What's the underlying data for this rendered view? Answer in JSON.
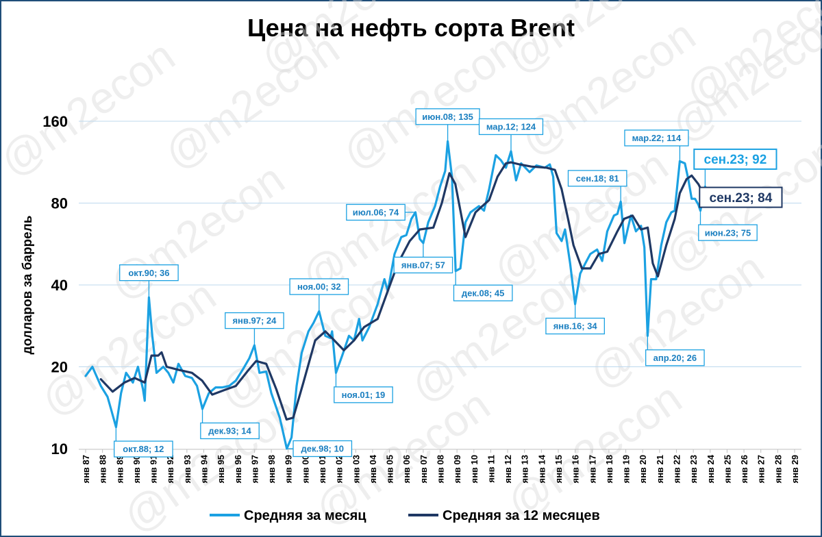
{
  "chart_data": {
    "type": "line",
    "title": "Цена на нефть сорта Brent",
    "ylabel": "долларов за баррель",
    "xlabel": "",
    "yscale": "log",
    "ylim": [
      10,
      160
    ],
    "yticks": [
      10,
      20,
      40,
      80,
      160
    ],
    "grid": "horizontal",
    "legend_position": "bottom",
    "watermark": "@m2econ",
    "colors": {
      "monthly": "#1ba1e2",
      "annual": "#1f3864"
    },
    "x_tick_labels": [
      "янв 87",
      "янв 88",
      "янв 89",
      "янв 90",
      "янв 91",
      "янв 92",
      "янв 93",
      "янв 94",
      "янв 95",
      "янв 96",
      "янв 97",
      "янв 98",
      "янв 99",
      "янв 00",
      "янв 01",
      "янв 02",
      "янв 03",
      "янв 04",
      "янв 05",
      "янв 06",
      "янв 07",
      "янв 08",
      "янв 09",
      "янв 10",
      "янв 11",
      "янв 12",
      "янв 13",
      "янв 14",
      "янв 15",
      "янв 16",
      "янв 17",
      "янв 18",
      "янв 19",
      "янв 20",
      "янв 21",
      "янв 22",
      "янв 23",
      "янв 24",
      "янв 25",
      "янв 26",
      "янв 27",
      "янв 28",
      "янв 29"
    ],
    "series": [
      {
        "name": "Средняя за месяц",
        "points": [
          [
            1987.0,
            18.5
          ],
          [
            1987.4,
            20
          ],
          [
            1987.9,
            17
          ],
          [
            1988.3,
            15.5
          ],
          [
            1988.5,
            14
          ],
          [
            1988.8,
            12
          ],
          [
            1989.1,
            16
          ],
          [
            1989.4,
            19
          ],
          [
            1989.8,
            17.5
          ],
          [
            1990.1,
            20
          ],
          [
            1990.4,
            16.5
          ],
          [
            1990.5,
            15
          ],
          [
            1990.75,
            36
          ],
          [
            1990.95,
            26
          ],
          [
            1991.2,
            19
          ],
          [
            1991.6,
            20
          ],
          [
            1991.9,
            19
          ],
          [
            1992.2,
            17.5
          ],
          [
            1992.5,
            20.5
          ],
          [
            1992.9,
            18.5
          ],
          [
            1993.3,
            18.2
          ],
          [
            1993.6,
            17
          ],
          [
            1993.92,
            14
          ],
          [
            1994.3,
            16
          ],
          [
            1994.7,
            16.8
          ],
          [
            1995.1,
            16.8
          ],
          [
            1995.5,
            17
          ],
          [
            1995.9,
            17.8
          ],
          [
            1996.3,
            19.5
          ],
          [
            1996.7,
            21.5
          ],
          [
            1997.0,
            24
          ],
          [
            1997.3,
            19
          ],
          [
            1997.7,
            19.2
          ],
          [
            1998.0,
            16
          ],
          [
            1998.5,
            13
          ],
          [
            1998.92,
            10
          ],
          [
            1999.2,
            11
          ],
          [
            1999.5,
            17
          ],
          [
            1999.8,
            22.5
          ],
          [
            2000.2,
            27
          ],
          [
            2000.5,
            29
          ],
          [
            2000.83,
            32
          ],
          [
            2001.2,
            26
          ],
          [
            2001.5,
            25.5
          ],
          [
            2001.6,
            27
          ],
          [
            2001.83,
            19
          ],
          [
            2002.2,
            22
          ],
          [
            2002.6,
            26
          ],
          [
            2002.9,
            25
          ],
          [
            2003.2,
            30
          ],
          [
            2003.4,
            25
          ],
          [
            2003.8,
            28
          ],
          [
            2004.3,
            34
          ],
          [
            2004.7,
            42
          ],
          [
            2004.9,
            38
          ],
          [
            2005.3,
            52
          ],
          [
            2005.7,
            60
          ],
          [
            2006.0,
            61
          ],
          [
            2006.3,
            70
          ],
          [
            2006.54,
            74
          ],
          [
            2006.8,
            59
          ],
          [
            2007.0,
            57
          ],
          [
            2007.3,
            68
          ],
          [
            2007.7,
            78
          ],
          [
            2008.0,
            92
          ],
          [
            2008.3,
            105
          ],
          [
            2008.45,
            135
          ],
          [
            2008.7,
            100
          ],
          [
            2008.92,
            45
          ],
          [
            2009.2,
            46
          ],
          [
            2009.5,
            68
          ],
          [
            2009.8,
            74
          ],
          [
            2010.3,
            78
          ],
          [
            2010.6,
            75
          ],
          [
            2010.9,
            90
          ],
          [
            2011.3,
            120
          ],
          [
            2011.6,
            115
          ],
          [
            2011.9,
            108
          ],
          [
            2012.2,
            124
          ],
          [
            2012.5,
            97
          ],
          [
            2012.8,
            112
          ],
          [
            2013.3,
            104
          ],
          [
            2013.7,
            110
          ],
          [
            2014.2,
            108
          ],
          [
            2014.5,
            111
          ],
          [
            2014.7,
            100
          ],
          [
            2014.9,
            62
          ],
          [
            2015.2,
            58
          ],
          [
            2015.4,
            64
          ],
          [
            2015.7,
            48
          ],
          [
            2015.9,
            38
          ],
          [
            2016.0,
            34
          ],
          [
            2016.3,
            44
          ],
          [
            2016.6,
            48
          ],
          [
            2016.9,
            52
          ],
          [
            2017.3,
            54
          ],
          [
            2017.6,
            49
          ],
          [
            2017.9,
            63
          ],
          [
            2018.3,
            72
          ],
          [
            2018.5,
            73
          ],
          [
            2018.7,
            81
          ],
          [
            2018.92,
            57
          ],
          [
            2019.3,
            72
          ],
          [
            2019.6,
            63
          ],
          [
            2019.9,
            66
          ],
          [
            2020.1,
            55
          ],
          [
            2020.29,
            26
          ],
          [
            2020.5,
            42
          ],
          [
            2020.8,
            42
          ],
          [
            2021.1,
            56
          ],
          [
            2021.4,
            68
          ],
          [
            2021.7,
            74
          ],
          [
            2021.9,
            75
          ],
          [
            2022.2,
            114
          ],
          [
            2022.5,
            112
          ],
          [
            2022.7,
            98
          ],
          [
            2022.9,
            83
          ],
          [
            2023.1,
            83
          ],
          [
            2023.3,
            79
          ],
          [
            2023.42,
            75
          ],
          [
            2023.6,
            85
          ],
          [
            2023.7,
            92
          ]
        ]
      },
      {
        "name": "Средняя за 12 месяцев",
        "points": [
          [
            1987.9,
            18
          ],
          [
            1988.6,
            16.2
          ],
          [
            1989.3,
            17.5
          ],
          [
            1989.9,
            18.2
          ],
          [
            1990.5,
            17.5
          ],
          [
            1990.9,
            22
          ],
          [
            1991.3,
            22
          ],
          [
            1991.5,
            22.6
          ],
          [
            1991.8,
            20
          ],
          [
            1992.5,
            19.5
          ],
          [
            1993.3,
            19
          ],
          [
            1993.9,
            17.8
          ],
          [
            1994.5,
            15.8
          ],
          [
            1995.3,
            16.5
          ],
          [
            1995.9,
            17
          ],
          [
            1996.6,
            19.3
          ],
          [
            1997.1,
            21
          ],
          [
            1997.7,
            20.5
          ],
          [
            1998.3,
            16.5
          ],
          [
            1998.9,
            12.8
          ],
          [
            1999.3,
            13
          ],
          [
            1999.9,
            17.5
          ],
          [
            2000.6,
            25
          ],
          [
            2001.2,
            27
          ],
          [
            2001.6,
            25.5
          ],
          [
            2002.3,
            23
          ],
          [
            2002.9,
            25
          ],
          [
            2003.5,
            28
          ],
          [
            2004.3,
            30
          ],
          [
            2004.9,
            38
          ],
          [
            2005.5,
            48
          ],
          [
            2006.2,
            58
          ],
          [
            2006.8,
            64
          ],
          [
            2007.6,
            65
          ],
          [
            2008.1,
            80
          ],
          [
            2008.55,
            103
          ],
          [
            2008.9,
            94
          ],
          [
            2009.5,
            60
          ],
          [
            2010.1,
            74
          ],
          [
            2010.5,
            78
          ],
          [
            2010.9,
            82
          ],
          [
            2011.4,
            100
          ],
          [
            2011.9,
            112
          ],
          [
            2012.2,
            113
          ],
          [
            2012.7,
            111
          ],
          [
            2013.4,
            109
          ],
          [
            2014.3,
            108
          ],
          [
            2014.8,
            106
          ],
          [
            2015.2,
            90
          ],
          [
            2015.6,
            69
          ],
          [
            2015.9,
            56
          ],
          [
            2016.4,
            46
          ],
          [
            2016.9,
            46
          ],
          [
            2017.4,
            52
          ],
          [
            2017.9,
            53
          ],
          [
            2018.5,
            63
          ],
          [
            2018.9,
            70
          ],
          [
            2019.4,
            72
          ],
          [
            2019.9,
            64
          ],
          [
            2020.3,
            65
          ],
          [
            2020.6,
            48
          ],
          [
            2020.9,
            43
          ],
          [
            2021.4,
            56
          ],
          [
            2021.9,
            70
          ],
          [
            2022.2,
            87
          ],
          [
            2022.6,
            98
          ],
          [
            2022.9,
            101
          ],
          [
            2023.3,
            94
          ],
          [
            2023.7,
            84
          ]
        ]
      }
    ],
    "annotations": [
      {
        "label": "окт.90; 36",
        "series": "monthly",
        "x": 1990.75,
        "y": 36,
        "box": "above"
      },
      {
        "label": "окт.88; 12",
        "series": "monthly",
        "x": 1988.8,
        "y": 12,
        "box": "below-right"
      },
      {
        "label": "янв.97; 24",
        "series": "monthly",
        "x": 1997.0,
        "y": 24,
        "box": "above"
      },
      {
        "label": "дек.93; 14",
        "series": "monthly",
        "x": 1993.92,
        "y": 14,
        "box": "below-right"
      },
      {
        "label": "ноя.00; 32",
        "series": "monthly",
        "x": 2000.83,
        "y": 32,
        "box": "above"
      },
      {
        "label": "ноя.01; 19",
        "series": "monthly",
        "x": 2001.83,
        "y": 19,
        "box": "below-right"
      },
      {
        "label": "дек.98; 10",
        "series": "monthly",
        "x": 1998.92,
        "y": 10,
        "box": "right"
      },
      {
        "label": "июл.06; 74",
        "series": "monthly",
        "x": 2006.54,
        "y": 74,
        "box": "left"
      },
      {
        "label": "янв.07; 57",
        "series": "monthly",
        "x": 2007.0,
        "y": 57,
        "box": "below"
      },
      {
        "label": "июн.08; 135",
        "series": "monthly",
        "x": 2008.45,
        "y": 135,
        "box": "above"
      },
      {
        "label": "дек.08; 45",
        "series": "monthly",
        "x": 2008.92,
        "y": 45,
        "box": "below-right"
      },
      {
        "label": "мар.12; 124",
        "series": "monthly",
        "x": 2012.2,
        "y": 124,
        "box": "above"
      },
      {
        "label": "сен.18; 81",
        "series": "monthly",
        "x": 2018.7,
        "y": 81,
        "box": "above-left"
      },
      {
        "label": "янв.16; 34",
        "series": "monthly",
        "x": 2016.0,
        "y": 34,
        "box": "below"
      },
      {
        "label": "мар.22; 114",
        "series": "monthly",
        "x": 2022.2,
        "y": 114,
        "box": "above-left"
      },
      {
        "label": "апр.20; 26",
        "series": "monthly",
        "x": 2020.29,
        "y": 26,
        "box": "below-right"
      },
      {
        "label": "июн.23; 75",
        "series": "monthly",
        "x": 2023.42,
        "y": 75,
        "box": "below-right"
      },
      {
        "label": "сен.23; 92",
        "series": "monthly",
        "x": 2023.7,
        "y": 92,
        "box": "above-right"
      },
      {
        "label": "сен.23; 84",
        "series": "annual",
        "x": 2023.7,
        "y": 84,
        "box": "right"
      }
    ]
  }
}
